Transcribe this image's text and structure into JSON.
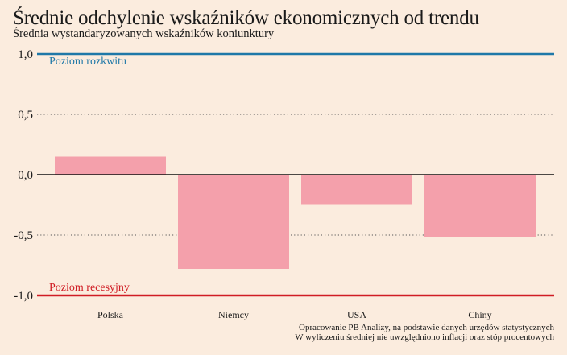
{
  "chart_data": {
    "type": "bar",
    "title": "Średnie odchylenie wskaźników ekonomicznych od trendu",
    "subtitle": "Średnia wystandaryzowanych wskaźników koniunktury",
    "categories": [
      "Polska",
      "Niemcy",
      "USA",
      "Chiny"
    ],
    "values": [
      0.15,
      -0.78,
      -0.25,
      -0.52
    ],
    "ylim": [
      -1.0,
      1.0
    ],
    "yticks": [
      1.0,
      0.5,
      0.0,
      -0.5,
      -1.0
    ],
    "ytick_labels": [
      "1,0",
      "0,5",
      "0,0",
      "-0,5",
      "-1,0"
    ],
    "bar_color": "#f4a0ab",
    "grid": "dotted",
    "reference_lines": [
      {
        "label": "Poziom rozkwitu",
        "value": 1.0,
        "color": "#1f78a8"
      },
      {
        "label": "Poziom recesyjny",
        "value": -1.0,
        "color": "#d01c24"
      }
    ],
    "source_lines": [
      "Opracowanie PB Analizy, na podstawie danych urzędów statystycznych",
      "W wyliczeniu średniej nie uwzględniono inflacji oraz stóp procentowych"
    ]
  }
}
